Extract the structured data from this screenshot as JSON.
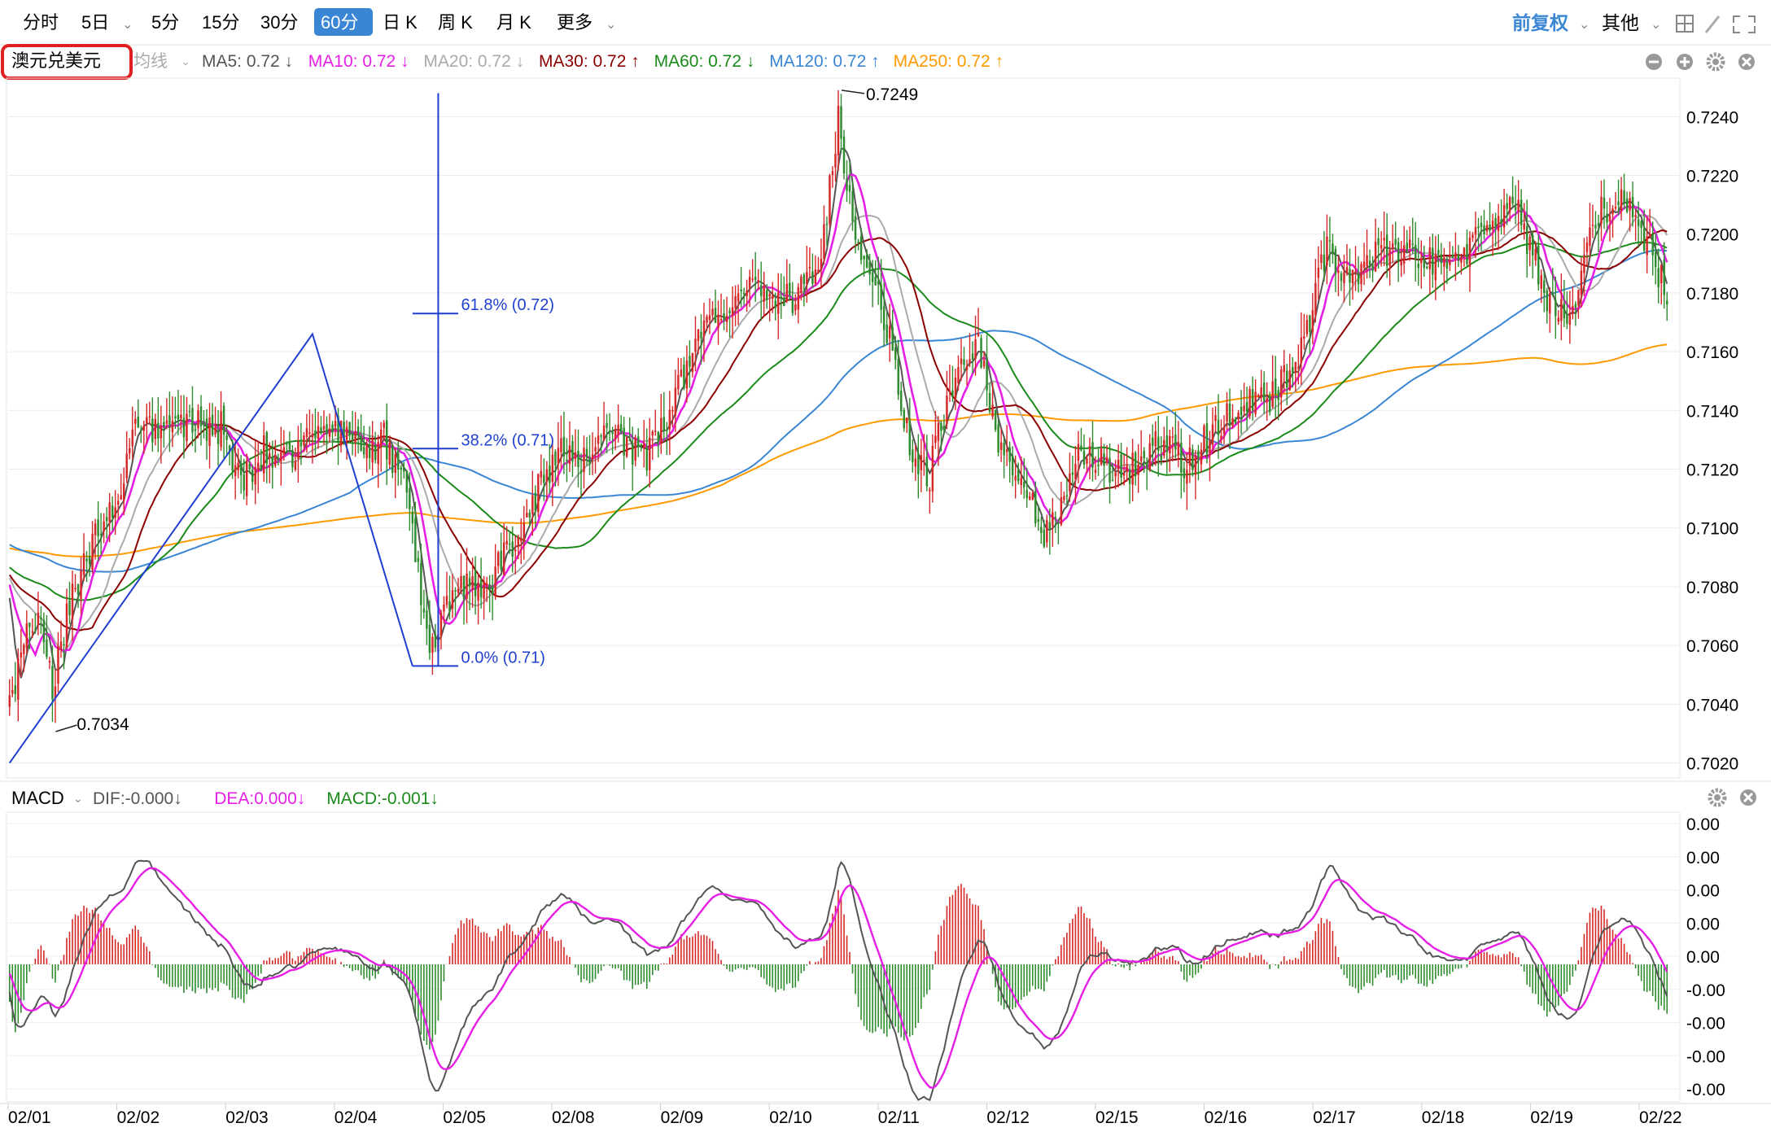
{
  "toolbar": {
    "periods": [
      "分时",
      "5日",
      "5分",
      "15分",
      "30分",
      "60分",
      "日 K",
      "周 K",
      "月 K",
      "更多"
    ],
    "active_period": "60分",
    "dropdown_periods": [
      "5日",
      "更多"
    ],
    "adjust_label": "前复权",
    "other_label": "其他",
    "icons": [
      "grid-icon",
      "pencil-icon",
      "fullscreen-icon"
    ]
  },
  "main_header": {
    "symbol": "澳元兑美元",
    "ma_label": "均线",
    "indicators": [
      {
        "label": "MA5: 0.72",
        "arrow": "↓",
        "color": "#555555"
      },
      {
        "label": "MA10: 0.72",
        "arrow": "↓",
        "color": "#e61ee6"
      },
      {
        "label": "MA20: 0.72",
        "arrow": "↓",
        "color": "#aaaaaa"
      },
      {
        "label": "MA30: 0.72",
        "arrow": "↑",
        "color": "#8b0000"
      },
      {
        "label": "MA60: 0.72",
        "arrow": "↓",
        "color": "#1a8a1a"
      },
      {
        "label": "MA120: 0.72",
        "arrow": "↑",
        "color": "#3a86d4"
      },
      {
        "label": "MA250: 0.72",
        "arrow": "↑",
        "color": "#ff9900"
      }
    ],
    "icons": [
      "minus-icon",
      "plus-icon",
      "gear-icon",
      "close-icon"
    ]
  },
  "macd_header": {
    "name": "MACD",
    "items": [
      {
        "label": "DIF:-0.000",
        "arrow": "↓",
        "color": "#555555"
      },
      {
        "label": "DEA:0.000",
        "arrow": "↓",
        "color": "#e61ee6"
      },
      {
        "label": "MACD:-0.001",
        "arrow": "↓",
        "color": "#1a8a1a"
      }
    ],
    "icons": [
      "gear-icon",
      "close-icon"
    ]
  },
  "colors": {
    "up": "#d62728",
    "down": "#2e8b2e",
    "fib": "#1f3fd1",
    "ma5": "#555555",
    "ma10": "#e61ee6",
    "ma20": "#aaaaaa",
    "ma30": "#8b0000",
    "ma60": "#1a8a1a",
    "ma120": "#3a86d4",
    "ma250": "#ff9900",
    "dif": "#555555",
    "dea": "#e61ee6"
  },
  "chart_data": {
    "type": "candlestick",
    "symbol": "澳元兑美元",
    "interval": "60分",
    "dates": [
      "02/01",
      "02/02",
      "02/03",
      "02/04",
      "02/05",
      "02/08",
      "02/09",
      "02/10",
      "02/11",
      "02/12",
      "02/15",
      "02/16",
      "02/17",
      "02/18",
      "02/19",
      "02/22"
    ],
    "price_axis": {
      "ticks": [
        "0.7020",
        "0.7040",
        "0.7060",
        "0.7080",
        "0.7100",
        "0.7120",
        "0.7140",
        "0.7160",
        "0.7180",
        "0.7200",
        "0.7220",
        "0.7240"
      ],
      "range": [
        0.7018,
        0.7249
      ]
    },
    "macd_axis": {
      "ticks": [
        "0.00",
        "0.00",
        "0.00",
        "0.00",
        "0.00",
        "-0.00",
        "-0.00",
        "-0.00",
        "-0.00"
      ]
    },
    "annotations": {
      "high": "0.7249",
      "low": "0.7034"
    },
    "fibonacci": [
      {
        "label": "61.8% (0.72)",
        "price": 0.7173
      },
      {
        "label": "38.2% (0.71)",
        "price": 0.7127
      },
      {
        "label": "0.0% (0.71)",
        "price": 0.7053
      }
    ],
    "fib_range": [
      0.7053,
      0.7248
    ],
    "close_anchors": [
      [
        0,
        0.704
      ],
      [
        6,
        0.7068
      ],
      [
        12,
        0.7066
      ],
      [
        15,
        0.7042
      ],
      [
        19,
        0.7066
      ],
      [
        26,
        0.709
      ],
      [
        36,
        0.7108
      ],
      [
        44,
        0.7132
      ],
      [
        55,
        0.7137
      ],
      [
        66,
        0.7136
      ],
      [
        74,
        0.7134
      ],
      [
        81,
        0.7116
      ],
      [
        89,
        0.7126
      ],
      [
        96,
        0.7122
      ],
      [
        104,
        0.7132
      ],
      [
        113,
        0.7135
      ],
      [
        122,
        0.7127
      ],
      [
        131,
        0.713
      ],
      [
        139,
        0.7115
      ],
      [
        143,
        0.7085
      ],
      [
        148,
        0.7057
      ],
      [
        153,
        0.7075
      ],
      [
        158,
        0.7079
      ],
      [
        166,
        0.7078
      ],
      [
        173,
        0.709
      ],
      [
        183,
        0.711
      ],
      [
        192,
        0.7126
      ],
      [
        200,
        0.7121
      ],
      [
        212,
        0.7133
      ],
      [
        222,
        0.7123
      ],
      [
        233,
        0.7145
      ],
      [
        241,
        0.7165
      ],
      [
        250,
        0.7175
      ],
      [
        262,
        0.7183
      ],
      [
        273,
        0.7178
      ],
      [
        283,
        0.7186
      ],
      [
        290,
        0.724
      ],
      [
        295,
        0.7205
      ],
      [
        305,
        0.7178
      ],
      [
        315,
        0.713
      ],
      [
        321,
        0.7115
      ],
      [
        331,
        0.7153
      ],
      [
        339,
        0.7166
      ],
      [
        346,
        0.7128
      ],
      [
        356,
        0.7115
      ],
      [
        361,
        0.7095
      ],
      [
        369,
        0.711
      ],
      [
        375,
        0.7125
      ],
      [
        385,
        0.712
      ],
      [
        393,
        0.7121
      ],
      [
        403,
        0.7129
      ],
      [
        412,
        0.7122
      ],
      [
        423,
        0.7135
      ],
      [
        434,
        0.7143
      ],
      [
        442,
        0.7144
      ],
      [
        452,
        0.716
      ],
      [
        461,
        0.7195
      ],
      [
        470,
        0.7183
      ],
      [
        480,
        0.7195
      ],
      [
        492,
        0.7195
      ],
      [
        503,
        0.7186
      ],
      [
        516,
        0.7202
      ],
      [
        527,
        0.721
      ],
      [
        537,
        0.718
      ],
      [
        546,
        0.7174
      ],
      [
        555,
        0.7205
      ],
      [
        565,
        0.7215
      ],
      [
        573,
        0.7198
      ],
      [
        580,
        0.718
      ]
    ],
    "bar_count": 581,
    "ma_periods": [
      5,
      10,
      20,
      30,
      60,
      120,
      250
    ],
    "macd_params": [
      12,
      26,
      9
    ]
  }
}
